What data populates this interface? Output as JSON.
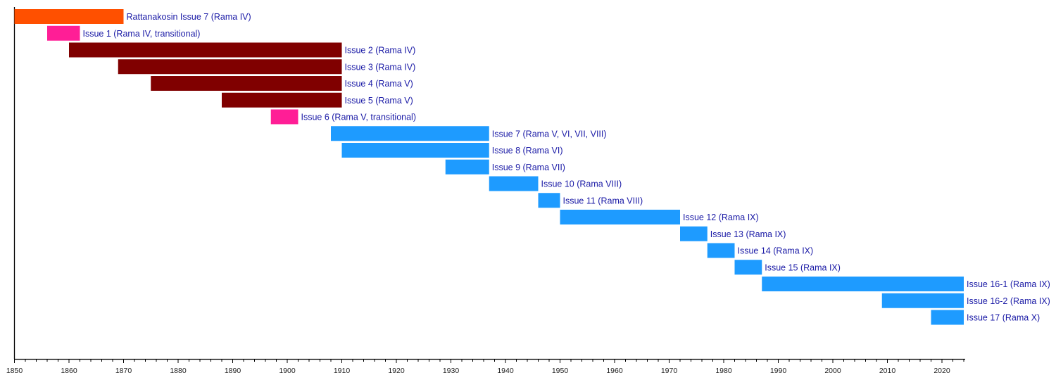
{
  "chart_data": {
    "type": "bar",
    "orientation": "horizontal-timeline",
    "xlim": [
      1850,
      2024
    ],
    "x_ticks": [
      1850,
      1860,
      1870,
      1880,
      1890,
      1900,
      1910,
      1920,
      1930,
      1940,
      1950,
      1960,
      1970,
      1980,
      1990,
      2000,
      2010,
      2020
    ],
    "minor_tick_step": 2,
    "grid": false,
    "colors": {
      "orange": "#FF5000",
      "pink": "#FF1E96",
      "maroon": "#800000",
      "blue": "#1E9BFF",
      "label": "#1a1aa6"
    },
    "bars": [
      {
        "label": "Rattanakosin Issue 7 (Rama IV)",
        "start": 1850,
        "end": 1870,
        "color": "orange"
      },
      {
        "label": "Issue 1 (Rama IV, transitional)",
        "start": 1856,
        "end": 1862,
        "color": "pink"
      },
      {
        "label": "Issue 2 (Rama IV)",
        "start": 1860,
        "end": 1910,
        "color": "maroon"
      },
      {
        "label": "Issue 3 (Rama IV)",
        "start": 1869,
        "end": 1910,
        "color": "maroon"
      },
      {
        "label": "Issue 4 (Rama V)",
        "start": 1875,
        "end": 1910,
        "color": "maroon"
      },
      {
        "label": "Issue 5 (Rama V)",
        "start": 1888,
        "end": 1910,
        "color": "maroon"
      },
      {
        "label": "Issue 6 (Rama V, transitional)",
        "start": 1897,
        "end": 1902,
        "color": "pink"
      },
      {
        "label": "Issue 7 (Rama V, VI, VII, VIII)",
        "start": 1908,
        "end": 1937,
        "color": "blue"
      },
      {
        "label": "Issue 8 (Rama VI)",
        "start": 1910,
        "end": 1937,
        "color": "blue"
      },
      {
        "label": "Issue 9 (Rama VII)",
        "start": 1929,
        "end": 1937,
        "color": "blue"
      },
      {
        "label": "Issue 10 (Rama VIII)",
        "start": 1937,
        "end": 1946,
        "color": "blue"
      },
      {
        "label": "Issue 11 (Rama VIII)",
        "start": 1946,
        "end": 1950,
        "color": "blue"
      },
      {
        "label": "Issue 12 (Rama IX)",
        "start": 1950,
        "end": 1972,
        "color": "blue"
      },
      {
        "label": "Issue 13 (Rama IX)",
        "start": 1972,
        "end": 1977,
        "color": "blue"
      },
      {
        "label": "Issue 14 (Rama IX)",
        "start": 1977,
        "end": 1982,
        "color": "blue"
      },
      {
        "label": "Issue 15 (Rama IX)",
        "start": 1982,
        "end": 1987,
        "color": "blue"
      },
      {
        "label": "Issue 16-1 (Rama IX)",
        "start": 1987,
        "end": 2024,
        "color": "blue"
      },
      {
        "label": "Issue 16-2 (Rama IX)",
        "start": 2009,
        "end": 2024,
        "color": "blue"
      },
      {
        "label": "Issue 17 (Rama X)",
        "start": 2018,
        "end": 2024,
        "color": "blue"
      }
    ]
  }
}
